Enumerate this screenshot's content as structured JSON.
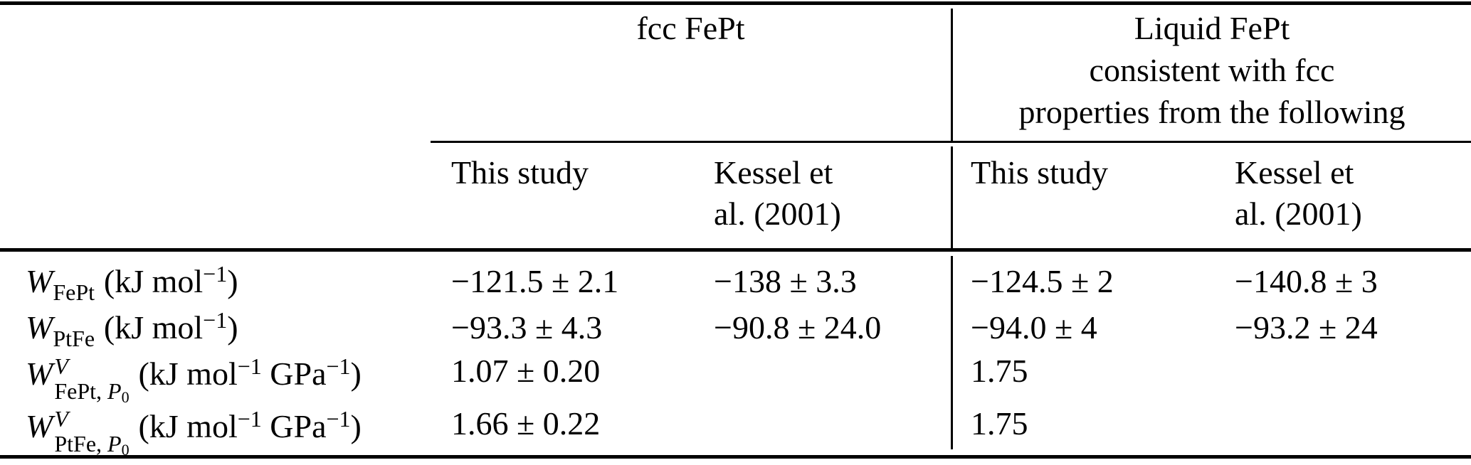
{
  "colors": {
    "background": "#ffffff",
    "text": "#000000",
    "rule": "#000000"
  },
  "table": {
    "group_headers": {
      "fcc": "fcc FePt",
      "liquid_lines": [
        "Liquid FePt",
        "consistent with fcc",
        "properties from the following"
      ]
    },
    "sub_headers": {
      "fcc_this_study": "This study",
      "fcc_kessel_line1": "Kessel et",
      "fcc_kessel_line2": "al. (2001)",
      "liquid_this_study": "This study",
      "liquid_kessel_line1": "Kessel et",
      "liquid_kessel_line2": "al. (2001)"
    },
    "rows": [
      {
        "label": {
          "symbol": "W",
          "sub": "FePt",
          "unit_open": "(kJ mol",
          "unit_sup": "−1",
          "unit_close": ")"
        },
        "values": {
          "fcc_this_study": "−121.5 ± 2.1",
          "fcc_kessel": "−138 ± 3.3",
          "liquid_this_study": "−124.5 ± 2",
          "liquid_kessel": "−140.8 ± 3"
        }
      },
      {
        "label": {
          "symbol": "W",
          "sub": "PtFe",
          "unit_open": "(kJ mol",
          "unit_sup": "−1",
          "unit_close": ")"
        },
        "values": {
          "fcc_this_study": "−93.3 ± 4.3",
          "fcc_kessel": "−90.8 ± 24.0",
          "liquid_this_study": "−94.0 ± 4",
          "liquid_kessel": "−93.2 ± 24"
        }
      },
      {
        "label": {
          "symbol": "W",
          "sup": "V",
          "sub_pre": "FePt, ",
          "sub_var": "P",
          "sub_idx": "0",
          "unit_open": "(kJ mol",
          "unit_sup1": "−1",
          "unit_mid": " GPa",
          "unit_sup2": "−1",
          "unit_close": ")"
        },
        "values": {
          "fcc_this_study": "1.07 ± 0.20",
          "fcc_kessel": "",
          "liquid_this_study": "1.75",
          "liquid_kessel": ""
        }
      },
      {
        "label": {
          "symbol": "W",
          "sup": "V",
          "sub_pre": "PtFe, ",
          "sub_var": "P",
          "sub_idx": "0",
          "unit_open": "(kJ mol",
          "unit_sup1": "−1",
          "unit_mid": " GPa",
          "unit_sup2": "−1",
          "unit_close": ")"
        },
        "values": {
          "fcc_this_study": "1.66 ± 0.22",
          "fcc_kessel": "",
          "liquid_this_study": "1.75",
          "liquid_kessel": ""
        }
      }
    ]
  }
}
